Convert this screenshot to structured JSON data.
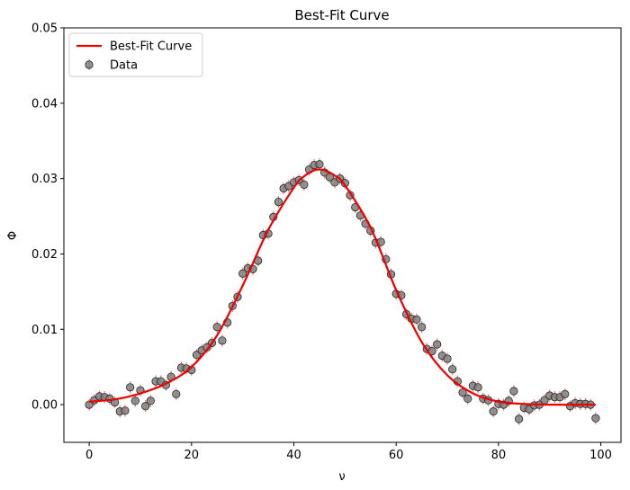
{
  "chart_data": {
    "type": "scatter",
    "title": "Best-Fit Curve",
    "xlabel": "ν",
    "ylabel": "Φ",
    "xlim": [
      -4.95,
      103.95
    ],
    "ylim": [
      -0.005,
      0.05
    ],
    "xticks": [
      0,
      20,
      40,
      60,
      80,
      100
    ],
    "yticks": [
      0.0,
      0.01,
      0.02,
      0.03,
      0.04,
      0.05
    ],
    "xtick_labels": [
      "0",
      "20",
      "40",
      "60",
      "80",
      "100"
    ],
    "ytick_labels": [
      "0.00",
      "0.01",
      "0.02",
      "0.03",
      "0.04",
      "0.05"
    ],
    "grid": false,
    "legend_position": "upper-left",
    "series": [
      {
        "name": "Data",
        "kind": "errorbar-scatter",
        "marker_color": "#808080",
        "marker_edge": "#222222",
        "errorbar_color": "#f08080",
        "yerr": 0.0008,
        "x": [
          0,
          1,
          2,
          3,
          4,
          5,
          6,
          7,
          8,
          9,
          10,
          11,
          12,
          13,
          14,
          15,
          16,
          17,
          18,
          19,
          20,
          21,
          22,
          23,
          24,
          25,
          26,
          27,
          28,
          29,
          30,
          31,
          32,
          33,
          34,
          35,
          36,
          37,
          38,
          39,
          40,
          41,
          42,
          43,
          44,
          45,
          46,
          47,
          48,
          49,
          50,
          51,
          52,
          53,
          54,
          55,
          56,
          57,
          58,
          59,
          60,
          61,
          62,
          63,
          64,
          65,
          66,
          67,
          68,
          69,
          70,
          71,
          72,
          73,
          74,
          75,
          76,
          77,
          78,
          79,
          80,
          81,
          82,
          83,
          84,
          85,
          86,
          87,
          88,
          89,
          90,
          91,
          92,
          93,
          94,
          95,
          96,
          97,
          98,
          99
        ],
        "y": [
          0.0,
          0.0006,
          0.0011,
          0.001,
          0.0008,
          0.0003,
          -0.0009,
          -0.0008,
          0.0023,
          0.0005,
          0.0019,
          -0.0002,
          0.0005,
          0.0031,
          0.0031,
          0.0026,
          0.0037,
          0.0014,
          0.0049,
          0.0048,
          0.0046,
          0.0066,
          0.0072,
          0.0076,
          0.0082,
          0.0103,
          0.0085,
          0.0109,
          0.0131,
          0.0143,
          0.0174,
          0.0181,
          0.018,
          0.0191,
          0.0225,
          0.0227,
          0.0249,
          0.0269,
          0.0287,
          0.029,
          0.0295,
          0.0298,
          0.0292,
          0.0312,
          0.0318,
          0.0319,
          0.0308,
          0.0302,
          0.0295,
          0.03,
          0.0294,
          0.0278,
          0.0262,
          0.0251,
          0.024,
          0.0231,
          0.0215,
          0.0216,
          0.0193,
          0.0173,
          0.0147,
          0.0145,
          0.012,
          0.0114,
          0.0113,
          0.0103,
          0.0074,
          0.0071,
          0.008,
          0.0065,
          0.0061,
          0.0047,
          0.0031,
          0.0016,
          0.0008,
          0.0025,
          0.0023,
          0.0008,
          0.0006,
          -0.0009,
          0.0001,
          0.0,
          0.0005,
          0.0018,
          -0.0019,
          -0.0004,
          -0.0006,
          -0.0001,
          0.0,
          0.0006,
          0.0012,
          0.001,
          0.001,
          0.0014,
          -0.0002,
          0.0002,
          0.0001,
          0.0001,
          0.0,
          -0.0018
        ]
      },
      {
        "name": "Best-Fit Curve",
        "kind": "line",
        "color": "#ee0000",
        "x": [
          0,
          5,
          10,
          15,
          20,
          25,
          30,
          35,
          40,
          42,
          44,
          45,
          46,
          48,
          50,
          55,
          60,
          65,
          70,
          75,
          80,
          85,
          90,
          95,
          99
        ],
        "y": [
          0.0004,
          0.0007,
          0.0015,
          0.0028,
          0.005,
          0.0092,
          0.0158,
          0.0232,
          0.0288,
          0.0303,
          0.0311,
          0.0312,
          0.0311,
          0.0304,
          0.0291,
          0.0235,
          0.0152,
          0.0083,
          0.0039,
          0.0015,
          0.0004,
          0.0001,
          0.0,
          0.0,
          0.0
        ]
      }
    ]
  }
}
